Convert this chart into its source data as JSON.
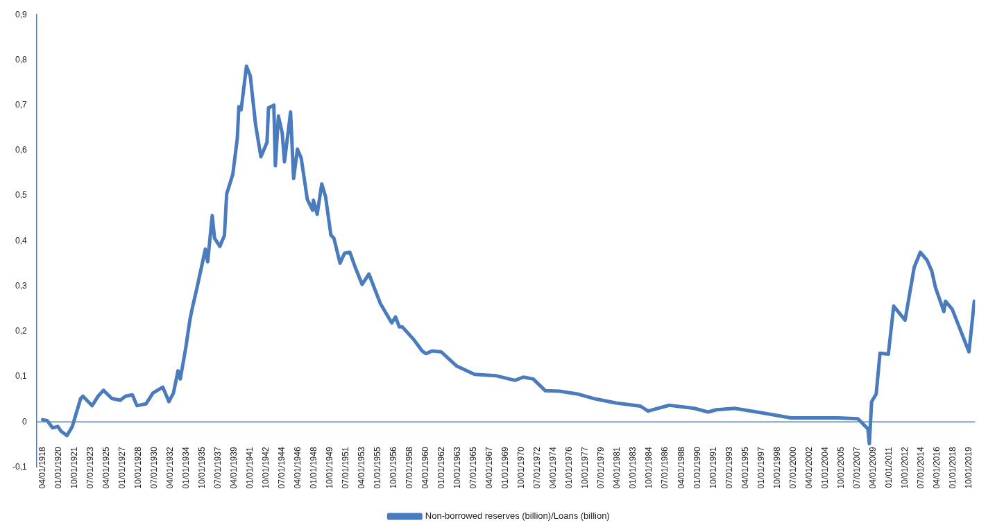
{
  "chart_data": {
    "type": "line",
    "grid": false,
    "legend": "bottom",
    "line_style": "solid",
    "x": [
      "1918-04",
      "1918-10",
      "1919-05",
      "1919-12",
      "1920-04",
      "1920-12",
      "1921-07",
      "1922-06",
      "1922-09",
      "1923-09",
      "1924-05",
      "1924-12",
      "1925-11",
      "1926-10",
      "1927-05",
      "1928-02",
      "1928-08",
      "1929-08",
      "1930-05",
      "1931-06",
      "1932-02",
      "1932-08",
      "1933-02",
      "1933-05",
      "1933-12",
      "1934-06",
      "1934-09",
      "1935-03",
      "1936-02",
      "1936-05",
      "1936-11",
      "1937-02",
      "1937-09",
      "1938-03",
      "1938-06",
      "1939-02",
      "1939-08",
      "1939-10",
      "1940-01",
      "1940-08",
      "1941-01",
      "1941-08",
      "1942-03",
      "1942-11",
      "1943-01",
      "1943-08",
      "1943-10",
      "1944-02",
      "1944-07",
      "1944-10",
      "1945-06",
      "1945-10",
      "1946-03",
      "1946-08",
      "1947-04",
      "1947-11",
      "1947-12",
      "1948-05",
      "1948-11",
      "1949-04",
      "1949-11",
      "1950-03",
      "1950-11",
      "1951-05",
      "1951-12",
      "1952-07",
      "1953-04",
      "1954-01",
      "1955-04",
      "1956-07",
      "1956-12",
      "1957-05",
      "1957-09",
      "1958-12",
      "1959-11",
      "1960-04",
      "1960-12",
      "1961-12",
      "1963-08",
      "1965-08",
      "1968-01",
      "1970-01",
      "1970-12",
      "1972-01",
      "1973-05",
      "1974-12",
      "1976-11",
      "1978-08",
      "1981-02",
      "1983-10",
      "1984-08",
      "1986-12",
      "1989-09",
      "1991-03",
      "1992-02",
      "1994-02",
      "1997-02",
      "2000-04",
      "2005-06",
      "2007-08",
      "2008-09",
      "2008-11",
      "2009-02",
      "2009-08",
      "2010-01",
      "2010-12",
      "2011-07",
      "2012-10",
      "2013-10",
      "2014-06",
      "2015-03",
      "2015-09",
      "2016-02",
      "2017-01",
      "2017-03",
      "2017-12",
      "2018-11",
      "2019-10",
      "2020-05"
    ],
    "series": [
      {
        "name": "Non-borrowed reserves (billion)/Loans (billion)",
        "color": "#4a7bbd",
        "values": [
          0.005,
          0.003,
          -0.013,
          -0.01,
          -0.02,
          -0.03,
          -0.01,
          0.052,
          0.057,
          0.036,
          0.057,
          0.07,
          0.052,
          0.048,
          0.057,
          0.06,
          0.036,
          0.04,
          0.064,
          0.077,
          0.045,
          0.064,
          0.113,
          0.095,
          0.162,
          0.229,
          0.253,
          0.297,
          0.382,
          0.354,
          0.456,
          0.406,
          0.388,
          0.412,
          0.504,
          0.547,
          0.627,
          0.697,
          0.69,
          0.786,
          0.765,
          0.657,
          0.586,
          0.618,
          0.694,
          0.7,
          0.566,
          0.676,
          0.639,
          0.575,
          0.685,
          0.538,
          0.603,
          0.583,
          0.492,
          0.468,
          0.49,
          0.459,
          0.526,
          0.498,
          0.413,
          0.406,
          0.351,
          0.373,
          0.375,
          0.342,
          0.304,
          0.327,
          0.262,
          0.219,
          0.232,
          0.21,
          0.21,
          0.182,
          0.157,
          0.151,
          0.157,
          0.155,
          0.124,
          0.105,
          0.102,
          0.092,
          0.099,
          0.095,
          0.069,
          0.068,
          0.062,
          0.052,
          0.042,
          0.035,
          0.024,
          0.037,
          0.03,
          0.022,
          0.027,
          0.03,
          0.02,
          0.009,
          0.009,
          0.007,
          -0.015,
          -0.048,
          0.045,
          0.062,
          0.152,
          0.15,
          0.256,
          0.225,
          0.342,
          0.375,
          0.357,
          0.334,
          0.297,
          0.244,
          0.267,
          0.249,
          0.202,
          0.155,
          0.267
        ]
      }
    ],
    "xlim": [
      "1917-08",
      "2020-06"
    ],
    "ref_lines": [
      {
        "axis": "y",
        "value": 0,
        "color": "#5b7fa8"
      }
    ],
    "xticks": [
      {
        "value": "1918-04",
        "label": "04/01/1918"
      },
      {
        "value": "1920-01",
        "label": "01/01/1920"
      },
      {
        "value": "1921-10",
        "label": "10/01/1921"
      },
      {
        "value": "1923-07",
        "label": "07/01/1923"
      },
      {
        "value": "1925-04",
        "label": "04/01/1925"
      },
      {
        "value": "1927-01",
        "label": "01/01/1927"
      },
      {
        "value": "1928-10",
        "label": "10/01/1928"
      },
      {
        "value": "1930-07",
        "label": "07/01/1930"
      },
      {
        "value": "1932-04",
        "label": "04/01/1932"
      },
      {
        "value": "1934-01",
        "label": "01/01/1934"
      },
      {
        "value": "1935-10",
        "label": "10/01/1935"
      },
      {
        "value": "1937-07",
        "label": "07/01/1937"
      },
      {
        "value": "1939-04",
        "label": "04/01/1939"
      },
      {
        "value": "1941-01",
        "label": "01/01/1941"
      },
      {
        "value": "1942-10",
        "label": "10/01/1942"
      },
      {
        "value": "1944-07",
        "label": "07/01/1944"
      },
      {
        "value": "1946-04",
        "label": "04/01/1946"
      },
      {
        "value": "1948-01",
        "label": "01/01/1948"
      },
      {
        "value": "1949-10",
        "label": "10/01/1949"
      },
      {
        "value": "1951-07",
        "label": "07/01/1951"
      },
      {
        "value": "1953-04",
        "label": "04/01/1953"
      },
      {
        "value": "1955-01",
        "label": "01/01/1955"
      },
      {
        "value": "1956-10",
        "label": "10/01/1956"
      },
      {
        "value": "1958-07",
        "label": "07/01/1958"
      },
      {
        "value": "1960-04",
        "label": "04/01/1960"
      },
      {
        "value": "1962-01",
        "label": "01/01/1962"
      },
      {
        "value": "1963-10",
        "label": "10/01/1963"
      },
      {
        "value": "1965-07",
        "label": "07/01/1965"
      },
      {
        "value": "1967-04",
        "label": "04/01/1967"
      },
      {
        "value": "1969-01",
        "label": "01/01/1969"
      },
      {
        "value": "1970-10",
        "label": "10/01/1970"
      },
      {
        "value": "1972-07",
        "label": "07/01/1972"
      },
      {
        "value": "1974-04",
        "label": "04/01/1974"
      },
      {
        "value": "1976-01",
        "label": "01/01/1976"
      },
      {
        "value": "1977-10",
        "label": "10/01/1977"
      },
      {
        "value": "1979-07",
        "label": "07/01/1979"
      },
      {
        "value": "1981-04",
        "label": "04/01/1981"
      },
      {
        "value": "1983-01",
        "label": "01/01/1983"
      },
      {
        "value": "1984-10",
        "label": "10/01/1984"
      },
      {
        "value": "1986-07",
        "label": "07/01/1986"
      },
      {
        "value": "1988-04",
        "label": "04/01/1988"
      },
      {
        "value": "1990-01",
        "label": "01/01/1990"
      },
      {
        "value": "1991-10",
        "label": "10/01/1991"
      },
      {
        "value": "1993-07",
        "label": "07/01/1993"
      },
      {
        "value": "1995-04",
        "label": "04/01/1995"
      },
      {
        "value": "1997-01",
        "label": "01/01/1997"
      },
      {
        "value": "1998-10",
        "label": "10/01/1998"
      },
      {
        "value": "2000-07",
        "label": "07/01/2000"
      },
      {
        "value": "2002-04",
        "label": "04/01/2002"
      },
      {
        "value": "2004-01",
        "label": "01/01/2004"
      },
      {
        "value": "2005-10",
        "label": "10/01/2005"
      },
      {
        "value": "2007-07",
        "label": "07/01/2007"
      },
      {
        "value": "2009-04",
        "label": "04/01/2009"
      },
      {
        "value": "2011-01",
        "label": "01/01/2011"
      },
      {
        "value": "2012-10",
        "label": "10/01/2012"
      },
      {
        "value": "2014-07",
        "label": "07/01/2014"
      },
      {
        "value": "2016-04",
        "label": "04/01/2016"
      },
      {
        "value": "2018-01",
        "label": "01/01/2018"
      },
      {
        "value": "2019-10",
        "label": "10/01/2019"
      }
    ],
    "ylim": [
      -0.1,
      0.9
    ],
    "yticks": [
      {
        "value": -0.1,
        "label": "-0,1"
      },
      0,
      {
        "value": 0.1,
        "label": "0,1"
      },
      {
        "value": 0.2,
        "label": "0,2"
      },
      {
        "value": 0.3,
        "label": "0,3"
      },
      {
        "value": 0.4,
        "label": "0,4"
      },
      {
        "value": 0.5,
        "label": "0,5"
      },
      {
        "value": 0.6,
        "label": "0,6"
      },
      {
        "value": 0.7,
        "label": "0,7"
      },
      {
        "value": 0.8,
        "label": "0,8"
      },
      {
        "value": 0.9,
        "label": "0,9"
      }
    ]
  }
}
